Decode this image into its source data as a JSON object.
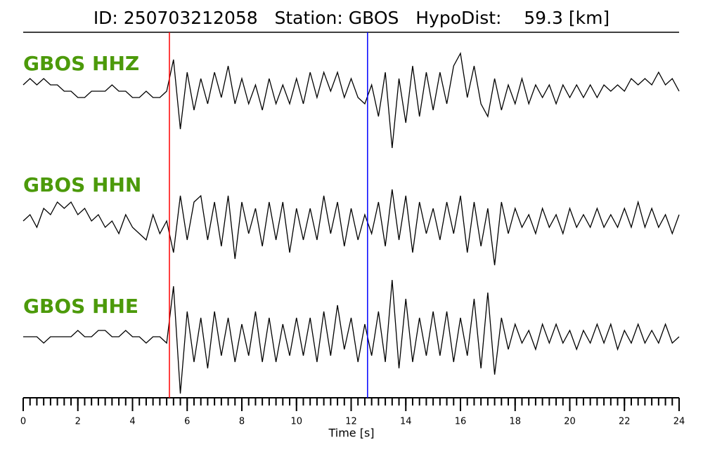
{
  "chart_data": {
    "type": "line",
    "title": "ID: 250703212058   Station: GBOS   HypoDist:    59.3 [km]",
    "xlabel": "Time [s]",
    "x": [
      0,
      0.25,
      0.5,
      0.75,
      1,
      1.25,
      1.5,
      1.75,
      2,
      2.25,
      2.5,
      2.75,
      3,
      3.25,
      3.5,
      3.75,
      4,
      4.25,
      4.5,
      4.75,
      5,
      5.25,
      5.5,
      5.75,
      6,
      6.25,
      6.5,
      6.75,
      7,
      7.25,
      7.5,
      7.75,
      8,
      8.25,
      8.5,
      8.75,
      9,
      9.25,
      9.5,
      9.75,
      10,
      10.25,
      10.5,
      10.75,
      11,
      11.25,
      11.5,
      11.75,
      12,
      12.25,
      12.5,
      12.75,
      13,
      13.25,
      13.5,
      13.75,
      14,
      14.25,
      14.5,
      14.75,
      15,
      15.25,
      15.5,
      15.75,
      16,
      16.25,
      16.5,
      16.75,
      17,
      17.25,
      17.5,
      17.75,
      18,
      18.25,
      18.5,
      18.75,
      19,
      19.25,
      19.5,
      19.75,
      20,
      20.25,
      20.5,
      20.75,
      21,
      21.25,
      21.5,
      21.75,
      22,
      22.25,
      22.5,
      22.75,
      23,
      23.25,
      23.5,
      23.75,
      24
    ],
    "series": [
      {
        "name": "GBOS HHZ",
        "color": "#000000",
        "values": [
          1,
          2,
          1,
          2,
          1,
          1,
          0,
          0,
          -1,
          -1,
          0,
          0,
          0,
          1,
          0,
          0,
          -1,
          -1,
          0,
          -1,
          -1,
          0,
          5,
          -6,
          3,
          -3,
          2,
          -2,
          3,
          -1,
          4,
          -2,
          2,
          -2,
          1,
          -3,
          2,
          -2,
          1,
          -2,
          2,
          -2,
          3,
          -1,
          3,
          0,
          3,
          -1,
          2,
          -1,
          -2,
          1,
          -4,
          3,
          -9,
          2,
          -5,
          4,
          -4,
          3,
          -3,
          3,
          -2,
          4,
          6,
          -1,
          4,
          -2,
          -4,
          2,
          -3,
          1,
          -2,
          2,
          -2,
          1,
          -1,
          1,
          -2,
          1,
          -1,
          1,
          -1,
          1,
          -1,
          1,
          0,
          1,
          0,
          2,
          1,
          2,
          1,
          3,
          1,
          2,
          0
        ]
      },
      {
        "name": "GBOS HHN",
        "color": "#000000",
        "values": [
          0,
          1,
          -1,
          2,
          1,
          3,
          2,
          3,
          1,
          2,
          0,
          1,
          -1,
          0,
          -2,
          1,
          -1,
          -2,
          -3,
          1,
          -2,
          0,
          -5,
          4,
          -3,
          3,
          4,
          -3,
          3,
          -4,
          4,
          -6,
          3,
          -2,
          2,
          -4,
          3,
          -3,
          3,
          -5,
          2,
          -3,
          2,
          -3,
          4,
          -2,
          3,
          -4,
          2,
          -3,
          1,
          -2,
          3,
          -4,
          5,
          -3,
          4,
          -5,
          3,
          -2,
          2,
          -3,
          3,
          -2,
          4,
          -5,
          3,
          -4,
          2,
          -7,
          3,
          -2,
          2,
          -1,
          1,
          -2,
          2,
          -1,
          1,
          -2,
          2,
          -1,
          1,
          -1,
          2,
          -1,
          1,
          -1,
          2,
          -1,
          3,
          -1,
          2,
          -1,
          1,
          -2,
          1
        ]
      },
      {
        "name": "GBOS HHE",
        "color": "#000000",
        "values": [
          0,
          0,
          0,
          -1,
          0,
          0,
          0,
          0,
          1,
          0,
          0,
          1,
          1,
          0,
          0,
          1,
          0,
          0,
          -1,
          0,
          0,
          -1,
          8,
          -9,
          4,
          -4,
          3,
          -5,
          4,
          -3,
          3,
          -4,
          2,
          -3,
          4,
          -4,
          3,
          -4,
          2,
          -3,
          3,
          -3,
          3,
          -4,
          4,
          -3,
          5,
          -2,
          3,
          -4,
          2,
          -3,
          4,
          -4,
          9,
          -5,
          6,
          -4,
          3,
          -3,
          4,
          -3,
          4,
          -4,
          3,
          -3,
          6,
          -5,
          7,
          -6,
          3,
          -2,
          2,
          -1,
          1,
          -2,
          2,
          -1,
          2,
          -1,
          1,
          -2,
          1,
          -1,
          2,
          -1,
          2,
          -2,
          1,
          -1,
          2,
          -1,
          1,
          -1,
          2,
          -1,
          0
        ]
      }
    ],
    "label_color": "#4c9a0a",
    "picks": [
      {
        "x": 5.35,
        "color": "#ff0000"
      },
      {
        "x": 12.6,
        "color": "#0000ff"
      }
    ],
    "xlim": [
      0,
      24
    ],
    "xticks": [
      0,
      2,
      4,
      6,
      8,
      10,
      12,
      14,
      16,
      18,
      20,
      22,
      24
    ],
    "xminor": 0.25,
    "ylim": [
      -10,
      10
    ]
  }
}
